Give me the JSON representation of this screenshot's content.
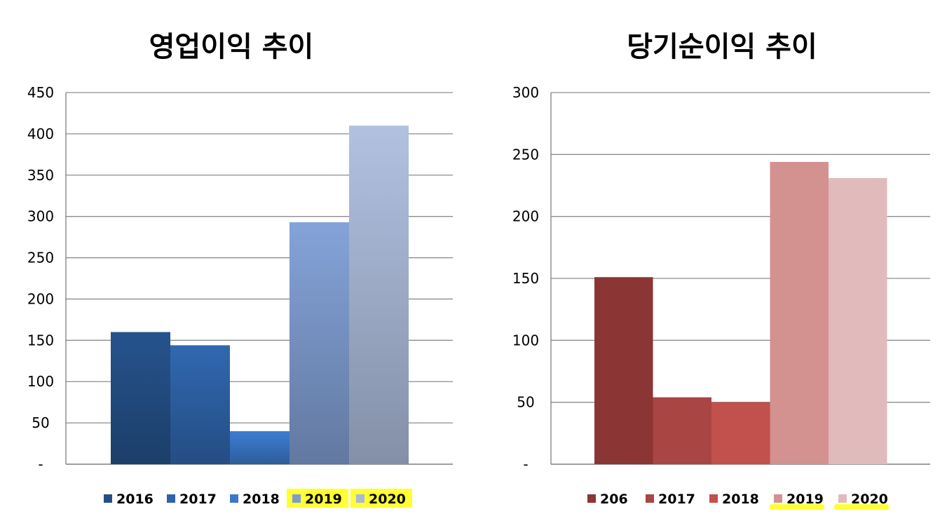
{
  "chart_data": [
    {
      "type": "bar",
      "title": "영업이익 추이",
      "y_ticks": [
        "-",
        "50",
        "100",
        "150",
        "200",
        "250",
        "300",
        "350",
        "400",
        "450"
      ],
      "ylim": [
        0,
        450
      ],
      "grid": true,
      "legend_position": "bottom",
      "series": [
        {
          "name": "2016",
          "values": [
            160
          ],
          "color": "#244f86"
        },
        {
          "name": "2017",
          "values": [
            144
          ],
          "color": "#2e63a8"
        },
        {
          "name": "2018",
          "values": [
            40
          ],
          "color": "#3a77c8"
        },
        {
          "name": "2019",
          "values": [
            293
          ],
          "color": "#7e9bce"
        },
        {
          "name": "2020",
          "values": [
            410
          ],
          "color": "#a9b8d6"
        }
      ],
      "legend_highlight": [
        "2019",
        "2020"
      ]
    },
    {
      "type": "bar",
      "title": "당기순이익 추이",
      "y_ticks": [
        "-",
        "50",
        "100",
        "150",
        "200",
        "250",
        "300"
      ],
      "ylim": [
        0,
        300
      ],
      "grid": true,
      "legend_position": "bottom",
      "series": [
        {
          "name": "206",
          "values": [
            151
          ],
          "color": "#8b3535"
        },
        {
          "name": "2017",
          "values": [
            54
          ],
          "color": "#a94543"
        },
        {
          "name": "2018",
          "values": [
            50
          ],
          "color": "#c2504d"
        },
        {
          "name": "2019",
          "values": [
            244
          ],
          "color": "#d39190"
        },
        {
          "name": "2020",
          "values": [
            231
          ],
          "color": "#e1bbbb"
        }
      ],
      "legend_underline": [
        "2019",
        "2020"
      ]
    }
  ]
}
